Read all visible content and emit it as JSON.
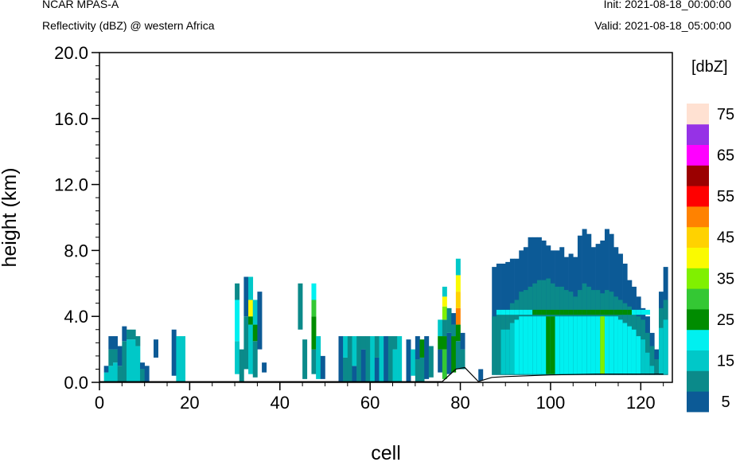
{
  "header": {
    "model": "NCAR MPAS-A",
    "field": "Reflectivity (dBZ) @ western Africa",
    "init": "Init: 2021-08-18_00:00:00",
    "valid": "Valid: 2021-08-18_05:00:00"
  },
  "chart_data": {
    "type": "heatmap",
    "title": "Reflectivity (dBZ) @ western Africa",
    "xlabel": "cell",
    "ylabel": "height (km)",
    "xlim": [
      0,
      127
    ],
    "ylim": [
      0,
      20
    ],
    "x_ticks": [
      "0",
      "20",
      "40",
      "60",
      "80",
      "100",
      "120"
    ],
    "x_tick_values": [
      0,
      20,
      40,
      60,
      80,
      100,
      120
    ],
    "y_ticks": [
      "0.0",
      "4.0",
      "8.0",
      "12.0",
      "16.0",
      "20.0"
    ],
    "y_tick_values": [
      0,
      4,
      8,
      12,
      16,
      20
    ],
    "colorbar": {
      "title": "[dbZ]",
      "labels": [
        "5",
        "15",
        "25",
        "35",
        "45",
        "55",
        "65",
        "75"
      ],
      "levels": [
        5,
        10,
        15,
        20,
        25,
        30,
        35,
        40,
        45,
        50,
        55,
        60,
        65,
        70,
        75
      ],
      "colors": [
        "#0c5a96",
        "#0b8a8a",
        "#00c8c8",
        "#00f0f0",
        "#008c00",
        "#34c834",
        "#80f000",
        "#fafa00",
        "#ffd200",
        "#ff8200",
        "#ff0000",
        "#9b0000",
        "#ff00ff",
        "#9632e6",
        "#ffe1d2"
      ]
    },
    "terrain_profile": [
      [
        76,
        0.05
      ],
      [
        79,
        0.8
      ],
      [
        81,
        0.9
      ],
      [
        84,
        0.05
      ],
      [
        87,
        0.3
      ],
      [
        90,
        0.35
      ],
      [
        100,
        0.45
      ],
      [
        110,
        0.5
      ],
      [
        120,
        0.5
      ],
      [
        125,
        0.5
      ]
    ],
    "columns": [
      {
        "x": 1,
        "top": 1.0,
        "base": 0,
        "bands": [
          [
            0,
            0.6,
            2
          ],
          [
            0.6,
            1.0,
            0
          ]
        ]
      },
      {
        "x": 2,
        "top": 2.8,
        "base": 0,
        "bands": [
          [
            0,
            1.0,
            2
          ],
          [
            1.0,
            2.0,
            1
          ],
          [
            2.0,
            2.8,
            0
          ]
        ]
      },
      {
        "x": 3,
        "top": 2.8,
        "base": 0,
        "bands": [
          [
            0,
            1.2,
            2
          ],
          [
            1.2,
            2.0,
            1
          ],
          [
            2.0,
            2.8,
            0
          ]
        ]
      },
      {
        "x": 4,
        "top": 2.2,
        "base": 0,
        "bands": [
          [
            0,
            1.0,
            1
          ],
          [
            1.0,
            2.2,
            0
          ]
        ]
      },
      {
        "x": 5,
        "top": 3.4,
        "base": 0,
        "bands": [
          [
            0,
            2.5,
            1
          ],
          [
            2.5,
            3.4,
            0
          ]
        ]
      },
      {
        "x": 6,
        "top": 3.2,
        "base": 0,
        "bands": [
          [
            0,
            2.6,
            2
          ],
          [
            2.6,
            3.2,
            1
          ]
        ]
      },
      {
        "x": 7,
        "top": 3.2,
        "base": 0,
        "bands": [
          [
            0,
            2.6,
            2
          ],
          [
            2.6,
            3.2,
            1
          ]
        ]
      },
      {
        "x": 8,
        "top": 2.8,
        "base": 0,
        "bands": [
          [
            0,
            2.2,
            2
          ],
          [
            2.2,
            2.8,
            1
          ]
        ]
      },
      {
        "x": 9,
        "top": 1.2,
        "base": 0,
        "bands": [
          [
            0,
            0.8,
            1
          ],
          [
            0.8,
            1.2,
            0
          ]
        ]
      },
      {
        "x": 10,
        "top": 1.5,
        "base": 0,
        "bands": [
          [
            0,
            1.0,
            0
          ]
        ]
      },
      {
        "x": 12,
        "top": 2.6,
        "base": 1.5,
        "bands": [
          [
            1.5,
            2.6,
            0
          ]
        ]
      },
      {
        "x": 16,
        "top": 3.2,
        "base": 0.4,
        "bands": [
          [
            0.4,
            3.2,
            0
          ]
        ]
      },
      {
        "x": 17,
        "top": 2.8,
        "base": 0,
        "bands": [
          [
            0,
            2.8,
            2
          ]
        ]
      },
      {
        "x": 18,
        "top": 2.8,
        "base": 0,
        "bands": [
          [
            0,
            2.8,
            2
          ]
        ]
      },
      {
        "x": 30,
        "top": 6.0,
        "base": 0.5,
        "bands": [
          [
            0.5,
            2.5,
            2
          ],
          [
            2.5,
            5.0,
            3
          ],
          [
            5.0,
            6.0,
            1
          ]
        ]
      },
      {
        "x": 31,
        "top": 2.0,
        "base": 0,
        "bands": [
          [
            0,
            2.0,
            1
          ]
        ]
      },
      {
        "x": 32,
        "top": 6.4,
        "base": 0.8,
        "bands": [
          [
            0.8,
            4.0,
            1
          ],
          [
            4.0,
            6.4,
            0
          ]
        ]
      },
      {
        "x": 33,
        "top": 6.4,
        "base": 0.5,
        "bands": [
          [
            0.5,
            3.5,
            2
          ],
          [
            3.5,
            4.0,
            4
          ],
          [
            4.0,
            5.0,
            7
          ],
          [
            5.0,
            6.4,
            2
          ]
        ]
      },
      {
        "x": 34,
        "top": 5.0,
        "base": 0.3,
        "bands": [
          [
            0.3,
            2.5,
            1
          ],
          [
            2.5,
            3.5,
            4
          ],
          [
            3.5,
            5.0,
            2
          ]
        ]
      },
      {
        "x": 35,
        "top": 5.5,
        "base": 2.0,
        "bands": [
          [
            2.0,
            5.5,
            0
          ]
        ]
      },
      {
        "x": 36,
        "top": 1.2,
        "base": 0.6,
        "bands": [
          [
            0.6,
            1.2,
            0
          ]
        ]
      },
      {
        "x": 44,
        "top": 6.0,
        "base": 3.2,
        "bands": [
          [
            3.2,
            6.0,
            1
          ]
        ]
      },
      {
        "x": 45,
        "top": 2.6,
        "base": 0.2,
        "bands": [
          [
            0.2,
            2.6,
            1
          ]
        ]
      },
      {
        "x": 47,
        "top": 6.0,
        "base": 0.5,
        "bands": [
          [
            0.5,
            2.0,
            1
          ],
          [
            2.0,
            4.0,
            4
          ],
          [
            4.0,
            5.0,
            5
          ],
          [
            5.0,
            6.0,
            3
          ]
        ]
      },
      {
        "x": 48,
        "top": 2.8,
        "base": 0.2,
        "bands": [
          [
            0.2,
            2.8,
            2
          ]
        ]
      },
      {
        "x": 49,
        "top": 1.6,
        "base": 0.2,
        "bands": [
          [
            0.2,
            1.6,
            0
          ]
        ]
      },
      {
        "x": 53,
        "top": 2.8,
        "base": 0,
        "bands": [
          [
            0,
            2.8,
            0
          ]
        ]
      },
      {
        "x": 54,
        "top": 2.8,
        "base": 0,
        "bands": [
          [
            0,
            1.5,
            1
          ],
          [
            1.5,
            2.8,
            2
          ]
        ]
      },
      {
        "x": 55,
        "top": 2.8,
        "base": 0,
        "bands": [
          [
            0,
            2.8,
            1
          ]
        ]
      },
      {
        "x": 56,
        "top": 2.8,
        "base": 0,
        "bands": [
          [
            0,
            1.0,
            0
          ],
          [
            1.0,
            2.8,
            2
          ]
        ]
      },
      {
        "x": 57,
        "top": 2.8,
        "base": 0,
        "bands": [
          [
            0,
            2.8,
            1
          ]
        ]
      },
      {
        "x": 58,
        "top": 2.8,
        "base": 0,
        "bands": [
          [
            0,
            2.0,
            0
          ],
          [
            2.0,
            2.8,
            1
          ]
        ]
      },
      {
        "x": 59,
        "top": 2.8,
        "base": 0,
        "bands": [
          [
            0,
            2.8,
            1
          ]
        ]
      },
      {
        "x": 60,
        "top": 2.8,
        "base": 0,
        "bands": [
          [
            0,
            2.8,
            2
          ]
        ]
      },
      {
        "x": 61,
        "top": 2.8,
        "base": 0,
        "bands": [
          [
            0,
            1.5,
            0
          ],
          [
            1.5,
            2.8,
            1
          ]
        ]
      },
      {
        "x": 62,
        "top": 2.8,
        "base": 0,
        "bands": [
          [
            0,
            2.8,
            2
          ]
        ]
      },
      {
        "x": 63,
        "top": 2.8,
        "base": 0,
        "bands": [
          [
            0,
            2.8,
            0
          ]
        ]
      },
      {
        "x": 64,
        "top": 2.8,
        "base": 0,
        "bands": [
          [
            0,
            2.8,
            1
          ]
        ]
      },
      {
        "x": 65,
        "top": 2.8,
        "base": 0,
        "bands": [
          [
            0,
            2.0,
            2
          ],
          [
            2.0,
            2.8,
            1
          ]
        ]
      },
      {
        "x": 66,
        "top": 2.8,
        "base": 0,
        "bands": [
          [
            0,
            2.8,
            2
          ]
        ]
      },
      {
        "x": 68,
        "top": 2.6,
        "base": 0,
        "bands": [
          [
            0,
            2.6,
            0
          ]
        ]
      },
      {
        "x": 69,
        "top": 2.0,
        "base": 0.4,
        "bands": [
          [
            0.4,
            2.0,
            2
          ]
        ]
      },
      {
        "x": 70,
        "top": 2.8,
        "base": 0,
        "bands": [
          [
            0,
            1.4,
            1
          ],
          [
            1.4,
            2.8,
            0
          ]
        ]
      },
      {
        "x": 71,
        "top": 2.6,
        "base": 0,
        "bands": [
          [
            0,
            1.5,
            1
          ],
          [
            1.5,
            2.6,
            4
          ]
        ]
      },
      {
        "x": 72,
        "top": 2.8,
        "base": 0.2,
        "bands": [
          [
            0.2,
            2.8,
            0
          ]
        ]
      },
      {
        "x": 73,
        "top": 2.2,
        "base": 0.3,
        "bands": [
          [
            0.3,
            2.2,
            1
          ]
        ]
      },
      {
        "x": 75,
        "top": 3.8,
        "base": 0.6,
        "bands": [
          [
            0.6,
            2.0,
            0
          ],
          [
            2.0,
            2.8,
            4
          ],
          [
            2.8,
            3.8,
            2
          ]
        ]
      },
      {
        "x": 76,
        "top": 5.8,
        "base": 0.2,
        "bands": [
          [
            0.2,
            2.0,
            5
          ],
          [
            2.0,
            2.8,
            4
          ],
          [
            2.8,
            3.8,
            1
          ],
          [
            3.8,
            4.6,
            6
          ],
          [
            4.6,
            5.2,
            7
          ],
          [
            5.2,
            5.8,
            2
          ]
        ]
      },
      {
        "x": 77,
        "top": 4.5,
        "base": 0.5,
        "bands": [
          [
            0.5,
            3.0,
            0
          ],
          [
            3.0,
            4.5,
            1
          ]
        ]
      },
      {
        "x": 78,
        "top": 4.2,
        "base": 0.6,
        "bands": [
          [
            0.6,
            2.8,
            4
          ],
          [
            2.8,
            3.5,
            1
          ],
          [
            3.5,
            4.2,
            0
          ]
        ]
      },
      {
        "x": 79,
        "top": 7.5,
        "base": 0.8,
        "bands": [
          [
            0.8,
            2.5,
            1
          ],
          [
            2.5,
            3.5,
            4
          ],
          [
            3.5,
            4.5,
            9
          ],
          [
            4.5,
            5.5,
            8
          ],
          [
            5.5,
            6.5,
            7
          ],
          [
            6.5,
            7.5,
            2
          ]
        ]
      },
      {
        "x": 80,
        "top": 3.0,
        "base": 0.8,
        "bands": [
          [
            0.8,
            2.0,
            1
          ],
          [
            2.0,
            3.0,
            0
          ]
        ]
      },
      {
        "x": 84,
        "top": 0.8,
        "base": 0.1,
        "bands": [
          [
            0.1,
            0.8,
            0
          ]
        ]
      }
    ],
    "right_block": [
      {
        "x": 87,
        "top": 7.0,
        "cyan_top": 4.0
      },
      {
        "x": 88,
        "top": 7.2,
        "cyan_top": 4.2
      },
      {
        "x": 89,
        "top": 7.2,
        "cyan_top": 4.4
      },
      {
        "x": 90,
        "top": 7.3,
        "cyan_top": 4.4
      },
      {
        "x": 91,
        "top": 7.5,
        "cyan_top": 4.8
      },
      {
        "x": 92,
        "top": 7.5,
        "cyan_top": 5.0
      },
      {
        "x": 93,
        "top": 8.0,
        "cyan_top": 5.5
      },
      {
        "x": 94,
        "top": 8.2,
        "cyan_top": 5.6
      },
      {
        "x": 95,
        "top": 8.8,
        "cyan_top": 5.8
      },
      {
        "x": 96,
        "top": 8.8,
        "cyan_top": 6.0
      },
      {
        "x": 97,
        "top": 8.8,
        "cyan_top": 6.2
      },
      {
        "x": 98,
        "top": 8.6,
        "cyan_top": 6.2
      },
      {
        "x": 99,
        "top": 8.3,
        "cyan_top": 6.3
      },
      {
        "x": 100,
        "top": 8.0,
        "cyan_top": 6.0
      },
      {
        "x": 101,
        "top": 8.0,
        "cyan_top": 5.8
      },
      {
        "x": 102,
        "top": 8.2,
        "cyan_top": 5.8
      },
      {
        "x": 103,
        "top": 7.6,
        "cyan_top": 5.6
      },
      {
        "x": 104,
        "top": 7.8,
        "cyan_top": 5.5
      },
      {
        "x": 105,
        "top": 7.6,
        "cyan_top": 5.2
      },
      {
        "x": 106,
        "top": 8.9,
        "cyan_top": 5.6
      },
      {
        "x": 107,
        "top": 9.3,
        "cyan_top": 6.0
      },
      {
        "x": 108,
        "top": 9.0,
        "cyan_top": 5.8
      },
      {
        "x": 109,
        "top": 8.2,
        "cyan_top": 5.6
      },
      {
        "x": 110,
        "top": 8.4,
        "cyan_top": 5.6
      },
      {
        "x": 111,
        "top": 8.6,
        "cyan_top": 5.4
      },
      {
        "x": 112,
        "top": 9.3,
        "cyan_top": 5.6
      },
      {
        "x": 113,
        "top": 9.0,
        "cyan_top": 5.5
      },
      {
        "x": 114,
        "top": 8.2,
        "cyan_top": 5.2
      },
      {
        "x": 115,
        "top": 7.8,
        "cyan_top": 5.0
      },
      {
        "x": 116,
        "top": 7.2,
        "cyan_top": 4.8
      },
      {
        "x": 117,
        "top": 6.2,
        "cyan_top": 4.6
      },
      {
        "x": 118,
        "top": 5.8,
        "cyan_top": 4.4
      },
      {
        "x": 119,
        "top": 5.2,
        "cyan_top": 4.0
      },
      {
        "x": 120,
        "top": 4.5,
        "cyan_top": 3.8
      },
      {
        "x": 121,
        "top": 4.0,
        "cyan_top": 3.0
      },
      {
        "x": 122,
        "top": 3.0,
        "cyan_top": 2.2
      },
      {
        "x": 123,
        "top": 2.0,
        "cyan_top": 1.6
      },
      {
        "x": 124,
        "top": 5.5,
        "cyan_top": 4.5
      },
      {
        "x": 125,
        "top": 7.0,
        "cyan_top": 5.0
      }
    ]
  }
}
